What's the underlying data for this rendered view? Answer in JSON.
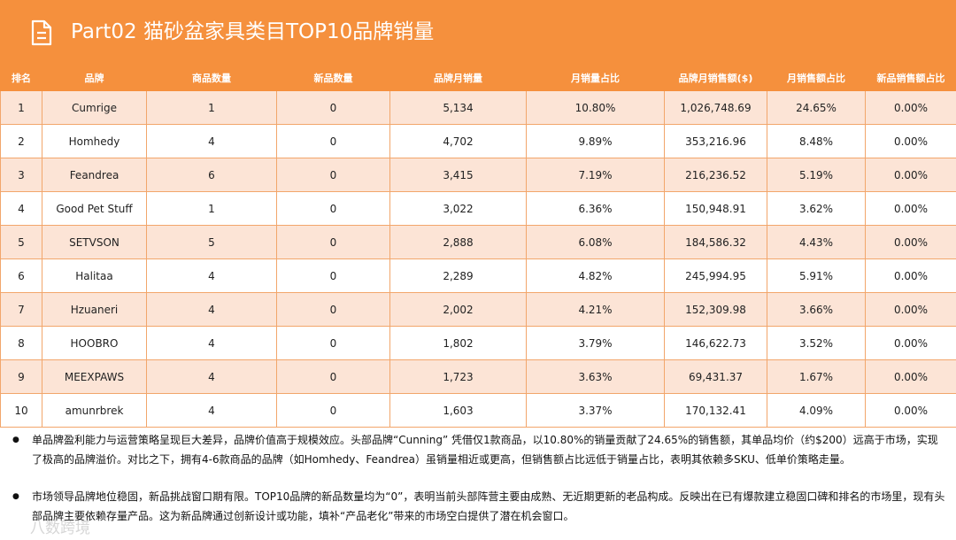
{
  "header": {
    "title": "Part02 猫砂盆家具类目TOP10品牌销量"
  },
  "table": {
    "columns": [
      "排名",
      "品牌",
      "商品数量",
      "新品数量",
      "品牌月销量",
      "月销量占比",
      "品牌月销售额($)",
      "月销售额占比",
      "新品销售额占比"
    ],
    "rows": [
      [
        "1",
        "Cumrige",
        "1",
        "0",
        "5,134",
        "10.80%",
        "1,026,748.69",
        "24.65%",
        "0.00%"
      ],
      [
        "2",
        "Homhedy",
        "4",
        "0",
        "4,702",
        "9.89%",
        "353,216.96",
        "8.48%",
        "0.00%"
      ],
      [
        "3",
        "Feandrea",
        "6",
        "0",
        "3,415",
        "7.19%",
        "216,236.52",
        "5.19%",
        "0.00%"
      ],
      [
        "4",
        "Good Pet Stuff",
        "1",
        "0",
        "3,022",
        "6.36%",
        "150,948.91",
        "3.62%",
        "0.00%"
      ],
      [
        "5",
        "SETVSON",
        "5",
        "0",
        "2,888",
        "6.08%",
        "184,586.32",
        "4.43%",
        "0.00%"
      ],
      [
        "6",
        "Halitaa",
        "4",
        "0",
        "2,289",
        "4.82%",
        "245,994.95",
        "5.91%",
        "0.00%"
      ],
      [
        "7",
        "Hzuaneri",
        "4",
        "0",
        "2,002",
        "4.21%",
        "152,309.98",
        "3.66%",
        "0.00%"
      ],
      [
        "8",
        "HOOBRO",
        "4",
        "0",
        "1,802",
        "3.79%",
        "146,622.73",
        "3.52%",
        "0.00%"
      ],
      [
        "9",
        "MEEXPAWS",
        "4",
        "0",
        "1,723",
        "3.63%",
        "69,431.37",
        "1.67%",
        "0.00%"
      ],
      [
        "10",
        "amunrbrek",
        "4",
        "0",
        "1,603",
        "3.37%",
        "170,132.41",
        "4.09%",
        "0.00%"
      ]
    ]
  },
  "notes": [
    "单品牌盈利能力与运营策略呈现巨大差异，品牌价值高于规模效应。头部品牌“Cunning” 凭借仅1款商品，以10.80%的销量贡献了24.65%的销售额，其单品均价（约$200）远高于市场，实现了极高的品牌溢价。对比之下，拥有4-6款商品的品牌（如Homhedy、Feandrea）虽销量相近或更高，但销售额占比远低于销量占比，表明其依赖多SKU、低单价策略走量。",
    "市场领导品牌地位稳固，新品挑战窗口期有限。TOP10品牌的新品数量均为“0”，表明当前头部阵营主要由成熟、无近期更新的老品构成。反映出在已有爆款建立稳固口碑和排名的市场里，现有头部品牌主要依赖存量产品。这为新品牌通过创新设计或功能，填补“产品老化”带来的市场空白提供了潜在机会窗口。"
  ],
  "watermark": "八数跨境"
}
